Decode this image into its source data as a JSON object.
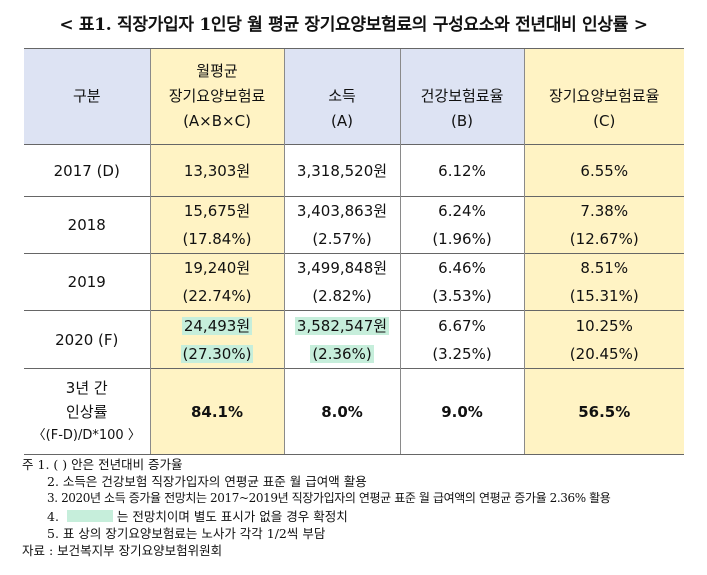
{
  "title": "< 표1. 직장가입자 1인당 월 평균 장기요양보험료의 구성요소와 전년대비 인상률 >",
  "header": {
    "category": "구분",
    "col1_line1": "월평균",
    "col1_line2": "장기요양보험료",
    "col1_line3": "(A×B×C)",
    "col2_line1": "소득",
    "col2_line2": "(A)",
    "col3_line1": "건강보험료율",
    "col3_line2": "(B)",
    "col4_line1": "장기요양보험료율",
    "col4_line2": "(C)"
  },
  "rows": [
    {
      "label": "2017 (D)",
      "premium": "13,303원",
      "income": "3,318,520원",
      "health_rate": "6.12%",
      "ltc_rate": "6.55%"
    },
    {
      "label": "2018",
      "premium": "15,675원",
      "premium_chg": "(17.84%)",
      "income": "3,403,863원",
      "income_chg": "(2.57%)",
      "health_rate": "6.24%",
      "health_chg": "(1.96%)",
      "ltc_rate": "7.38%",
      "ltc_chg": "(12.67%)"
    },
    {
      "label": "2019",
      "premium": "19,240원",
      "premium_chg": "(22.74%)",
      "income": "3,499,848원",
      "income_chg": "(2.82%)",
      "health_rate": "6.46%",
      "health_chg": "(3.53%)",
      "ltc_rate": "8.51%",
      "ltc_chg": "(15.31%)"
    },
    {
      "label": "2020 (F)",
      "premium": "24,493원",
      "premium_chg": "(27.30%)",
      "income": "3,582,547원",
      "income_chg": "(2.36%)",
      "health_rate": "6.67%",
      "health_chg": "(3.25%)",
      "ltc_rate": "10.25%",
      "ltc_chg": "(20.45%)"
    }
  ],
  "summary": {
    "label_line1": "3년 간",
    "label_line2": "인상률",
    "label_line3": "〈(F-D)/D*100 〉",
    "premium": "84.1%",
    "income": "8.0%",
    "health": "9.0%",
    "ltc": "56.5%"
  },
  "notes": {
    "prefix": "주",
    "n1": "1. ( ) 안은 전년대비 증가율",
    "n2": "2. 소득은 건강보험 직장가입자의 연평균 표준 월 급여액 활용",
    "n3": "3. 2020년 소득 증가율 전망치는 2017~2019년 직장가입자의 연평균 표준 월 급여액의 연평균 증가율 2.36% 활용",
    "n4_num": "4.",
    "n4_text": "는 전망치이며 별도 표시가 없을 경우 확정치",
    "n5": "5. 표 상의 장기요양보험료는 노사가 각각 1/2씩 부담",
    "source": "자료 : 보건복지부 장기요양보험위원회"
  },
  "colors": {
    "header_blue": "#dde3f3",
    "yellow": "#fff3c4",
    "mint": "#c6eedb"
  }
}
